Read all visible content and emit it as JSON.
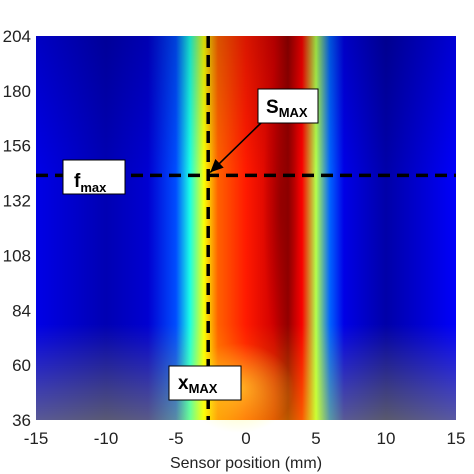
{
  "chart_data": {
    "type": "heatmap",
    "xlabel": "Sensor position (mm)",
    "ylabel": "",
    "xlim": [
      -15,
      15
    ],
    "ylim": [
      36,
      204
    ],
    "x_ticks": [
      -15,
      -10,
      -5,
      0,
      5,
      10,
      15
    ],
    "y_ticks": [
      36,
      60,
      84,
      108,
      132,
      156,
      180,
      204
    ],
    "colormap": "jet",
    "intensity_profile": {
      "x": [
        -15,
        -10,
        -7,
        -5,
        -4,
        -3,
        -2,
        0,
        2,
        3,
        4,
        5,
        6,
        7,
        10,
        15
      ],
      "value": [
        0.1,
        0.05,
        0.08,
        0.2,
        0.4,
        0.62,
        0.78,
        0.85,
        0.92,
        0.98,
        0.88,
        0.55,
        0.22,
        0.1,
        0.04,
        0.12
      ]
    },
    "crosshair": {
      "x": -2.7,
      "y": 143
    },
    "annotations": [
      {
        "id": "s-max",
        "main": "S",
        "sub": "MAX"
      },
      {
        "id": "f-max",
        "main": "f",
        "sub": "max"
      },
      {
        "id": "x-max",
        "main": "x",
        "sub": "MAX"
      }
    ],
    "colors": {
      "low": "#00008f",
      "mid": "#00ffff",
      "high": "#ff0000",
      "peak": "#800000",
      "crosshair": "#000000"
    }
  }
}
